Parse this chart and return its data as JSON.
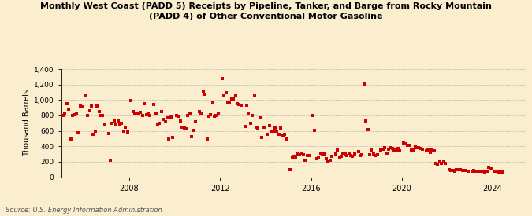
{
  "title": "Monthly West Coast (PADD 5) Receipts by Pipeline, Tanker, and Barge from Rocky Mountain\n(PADD 4) of Other Conventional Motor Gasoline",
  "ylabel": "Thousand Barrels",
  "source": "Source: U.S. Energy Information Administration",
  "background_color": "#faeece",
  "marker_color": "#cc0000",
  "ylim": [
    0,
    1400
  ],
  "xlim": [
    2005.0,
    2025.5
  ],
  "yticks": [
    0,
    200,
    400,
    600,
    800,
    1000,
    1200,
    1400
  ],
  "ytick_labels": [
    "0",
    "200",
    "400",
    "600",
    "800",
    "1,000",
    "1,200",
    "1,400"
  ],
  "xtick_years": [
    2008,
    2012,
    2016,
    2020,
    2024
  ],
  "data": [
    [
      2005.083,
      800
    ],
    [
      2005.167,
      820
    ],
    [
      2005.25,
      950
    ],
    [
      2005.333,
      880
    ],
    [
      2005.417,
      490
    ],
    [
      2005.5,
      800
    ],
    [
      2005.583,
      810
    ],
    [
      2005.667,
      820
    ],
    [
      2005.75,
      580
    ],
    [
      2005.833,
      920
    ],
    [
      2005.917,
      910
    ],
    [
      2006.083,
      1050
    ],
    [
      2006.167,
      800
    ],
    [
      2006.25,
      860
    ],
    [
      2006.333,
      920
    ],
    [
      2006.417,
      560
    ],
    [
      2006.5,
      600
    ],
    [
      2006.583,
      920
    ],
    [
      2006.667,
      850
    ],
    [
      2006.75,
      800
    ],
    [
      2006.833,
      800
    ],
    [
      2006.917,
      680
    ],
    [
      2007.083,
      570
    ],
    [
      2007.167,
      220
    ],
    [
      2007.25,
      700
    ],
    [
      2007.333,
      730
    ],
    [
      2007.417,
      680
    ],
    [
      2007.5,
      730
    ],
    [
      2007.583,
      680
    ],
    [
      2007.667,
      700
    ],
    [
      2007.75,
      600
    ],
    [
      2007.833,
      650
    ],
    [
      2007.917,
      590
    ],
    [
      2008.083,
      990
    ],
    [
      2008.167,
      850
    ],
    [
      2008.25,
      830
    ],
    [
      2008.333,
      820
    ],
    [
      2008.417,
      820
    ],
    [
      2008.5,
      840
    ],
    [
      2008.583,
      800
    ],
    [
      2008.667,
      950
    ],
    [
      2008.75,
      810
    ],
    [
      2008.833,
      830
    ],
    [
      2008.917,
      800
    ],
    [
      2009.083,
      940
    ],
    [
      2009.167,
      830
    ],
    [
      2009.25,
      680
    ],
    [
      2009.333,
      700
    ],
    [
      2009.417,
      850
    ],
    [
      2009.5,
      750
    ],
    [
      2009.583,
      720
    ],
    [
      2009.667,
      770
    ],
    [
      2009.75,
      490
    ],
    [
      2009.833,
      780
    ],
    [
      2009.917,
      510
    ],
    [
      2010.083,
      800
    ],
    [
      2010.167,
      790
    ],
    [
      2010.25,
      730
    ],
    [
      2010.333,
      650
    ],
    [
      2010.417,
      640
    ],
    [
      2010.5,
      630
    ],
    [
      2010.583,
      800
    ],
    [
      2010.667,
      830
    ],
    [
      2010.75,
      520
    ],
    [
      2010.833,
      610
    ],
    [
      2010.917,
      720
    ],
    [
      2011.083,
      850
    ],
    [
      2011.167,
      820
    ],
    [
      2011.25,
      1100
    ],
    [
      2011.333,
      1070
    ],
    [
      2011.417,
      490
    ],
    [
      2011.5,
      790
    ],
    [
      2011.583,
      810
    ],
    [
      2011.667,
      960
    ],
    [
      2011.75,
      790
    ],
    [
      2011.833,
      800
    ],
    [
      2011.917,
      830
    ],
    [
      2012.083,
      1280
    ],
    [
      2012.167,
      1050
    ],
    [
      2012.25,
      1090
    ],
    [
      2012.333,
      960
    ],
    [
      2012.417,
      960
    ],
    [
      2012.5,
      1010
    ],
    [
      2012.583,
      1010
    ],
    [
      2012.667,
      1050
    ],
    [
      2012.75,
      950
    ],
    [
      2012.833,
      940
    ],
    [
      2012.917,
      930
    ],
    [
      2013.083,
      660
    ],
    [
      2013.167,
      930
    ],
    [
      2013.25,
      830
    ],
    [
      2013.333,
      700
    ],
    [
      2013.417,
      800
    ],
    [
      2013.5,
      1050
    ],
    [
      2013.583,
      650
    ],
    [
      2013.667,
      640
    ],
    [
      2013.75,
      770
    ],
    [
      2013.833,
      510
    ],
    [
      2013.917,
      650
    ],
    [
      2014.083,
      560
    ],
    [
      2014.167,
      670
    ],
    [
      2014.25,
      600
    ],
    [
      2014.333,
      600
    ],
    [
      2014.417,
      640
    ],
    [
      2014.5,
      600
    ],
    [
      2014.583,
      550
    ],
    [
      2014.667,
      640
    ],
    [
      2014.75,
      530
    ],
    [
      2014.833,
      550
    ],
    [
      2014.917,
      490
    ],
    [
      2015.083,
      100
    ],
    [
      2015.167,
      260
    ],
    [
      2015.25,
      270
    ],
    [
      2015.333,
      250
    ],
    [
      2015.417,
      300
    ],
    [
      2015.5,
      290
    ],
    [
      2015.583,
      310
    ],
    [
      2015.667,
      290
    ],
    [
      2015.75,
      220
    ],
    [
      2015.833,
      280
    ],
    [
      2015.917,
      280
    ],
    [
      2016.083,
      800
    ],
    [
      2016.167,
      610
    ],
    [
      2016.25,
      240
    ],
    [
      2016.333,
      260
    ],
    [
      2016.417,
      310
    ],
    [
      2016.5,
      290
    ],
    [
      2016.583,
      300
    ],
    [
      2016.667,
      240
    ],
    [
      2016.75,
      200
    ],
    [
      2016.833,
      220
    ],
    [
      2016.917,
      270
    ],
    [
      2017.083,
      300
    ],
    [
      2017.167,
      350
    ],
    [
      2017.25,
      260
    ],
    [
      2017.333,
      270
    ],
    [
      2017.417,
      310
    ],
    [
      2017.5,
      300
    ],
    [
      2017.583,
      280
    ],
    [
      2017.667,
      310
    ],
    [
      2017.75,
      280
    ],
    [
      2017.833,
      270
    ],
    [
      2017.917,
      300
    ],
    [
      2018.083,
      330
    ],
    [
      2018.167,
      280
    ],
    [
      2018.25,
      290
    ],
    [
      2018.333,
      1210
    ],
    [
      2018.417,
      730
    ],
    [
      2018.5,
      620
    ],
    [
      2018.583,
      290
    ],
    [
      2018.667,
      350
    ],
    [
      2018.75,
      300
    ],
    [
      2018.833,
      280
    ],
    [
      2018.917,
      290
    ],
    [
      2019.083,
      350
    ],
    [
      2019.167,
      360
    ],
    [
      2019.25,
      380
    ],
    [
      2019.333,
      310
    ],
    [
      2019.417,
      360
    ],
    [
      2019.5,
      380
    ],
    [
      2019.583,
      370
    ],
    [
      2019.667,
      350
    ],
    [
      2019.75,
      340
    ],
    [
      2019.833,
      370
    ],
    [
      2019.917,
      340
    ],
    [
      2020.083,
      440
    ],
    [
      2020.167,
      430
    ],
    [
      2020.25,
      410
    ],
    [
      2020.333,
      410
    ],
    [
      2020.417,
      350
    ],
    [
      2020.5,
      350
    ],
    [
      2020.583,
      400
    ],
    [
      2020.667,
      380
    ],
    [
      2020.75,
      380
    ],
    [
      2020.833,
      370
    ],
    [
      2020.917,
      360
    ],
    [
      2021.083,
      340
    ],
    [
      2021.167,
      350
    ],
    [
      2021.25,
      320
    ],
    [
      2021.333,
      350
    ],
    [
      2021.417,
      340
    ],
    [
      2021.5,
      180
    ],
    [
      2021.583,
      170
    ],
    [
      2021.667,
      200
    ],
    [
      2021.75,
      180
    ],
    [
      2021.833,
      200
    ],
    [
      2021.917,
      180
    ],
    [
      2022.083,
      100
    ],
    [
      2022.167,
      90
    ],
    [
      2022.25,
      85
    ],
    [
      2022.333,
      80
    ],
    [
      2022.417,
      95
    ],
    [
      2022.5,
      95
    ],
    [
      2022.583,
      100
    ],
    [
      2022.667,
      85
    ],
    [
      2022.75,
      90
    ],
    [
      2022.833,
      90
    ],
    [
      2022.917,
      80
    ],
    [
      2023.083,
      80
    ],
    [
      2023.167,
      85
    ],
    [
      2023.25,
      75
    ],
    [
      2023.333,
      80
    ],
    [
      2023.417,
      75
    ],
    [
      2023.5,
      80
    ],
    [
      2023.583,
      75
    ],
    [
      2023.667,
      70
    ],
    [
      2023.75,
      75
    ],
    [
      2023.833,
      130
    ],
    [
      2023.917,
      120
    ],
    [
      2024.083,
      80
    ],
    [
      2024.167,
      75
    ],
    [
      2024.25,
      70
    ],
    [
      2024.333,
      65
    ],
    [
      2024.417,
      70
    ]
  ]
}
